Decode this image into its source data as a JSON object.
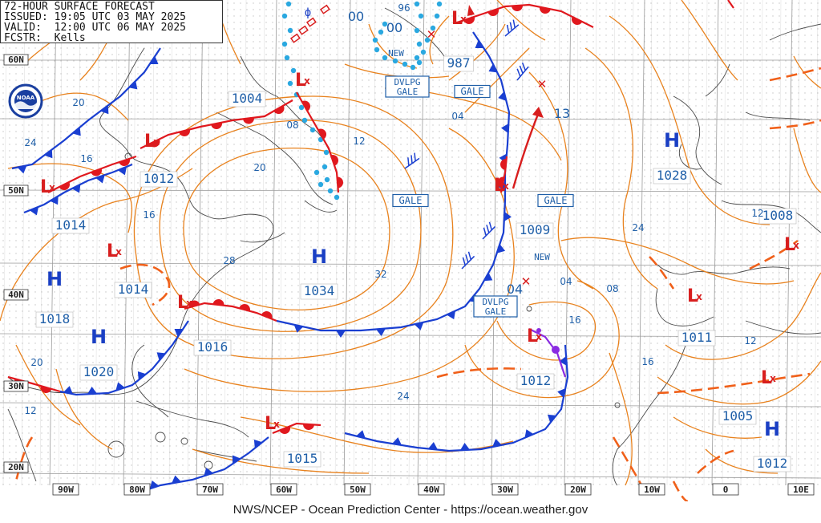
{
  "header": {
    "title": "72-HOUR SURFACE FORECAST",
    "issued": "ISSUED: 19:05 UTC 03 MAY 2025",
    "valid": "VALID:  12:00 UTC 06 MAY 2025",
    "forecaster": "FCSTR:  Kells"
  },
  "footer": {
    "credit": "NWS/NCEP - Ocean Prediction Center - https://ocean.weather.gov"
  },
  "logo": {
    "text": "NOAA",
    "icon": "noaa-logo-icon"
  },
  "colors": {
    "isobar": "#e8821e",
    "label": "#1f5fa8",
    "high": "#1a3fc4",
    "low": "#d81e1e",
    "cold_front": "#1a3fd1",
    "warm_front": "#e0181e",
    "occluded_front": "#8a2be2",
    "ice_edge": "#2aa8e0",
    "trough": "#f0601a",
    "land": "#555555",
    "grid": "#aaaaaa"
  },
  "grid": {
    "lat_labels": [
      "60N",
      "50N",
      "40N",
      "30N",
      "20N"
    ],
    "lon_labels": [
      "90W",
      "80W",
      "70W",
      "60W",
      "50W",
      "40W",
      "30W",
      "20W",
      "10W",
      "0",
      "10E"
    ]
  },
  "highs": [
    {
      "letter": "H",
      "pressure": "1034"
    },
    {
      "letter": "H",
      "pressure": "1028"
    },
    {
      "letter": "H",
      "pressure": "1018"
    },
    {
      "letter": "H",
      "pressure": "1020"
    },
    {
      "letter": "H",
      "pressure": "1012"
    }
  ],
  "lows": [
    {
      "pressure": "1004"
    },
    {
      "pressure": "1012"
    },
    {
      "pressure": "1014"
    },
    {
      "pressure": "1014"
    },
    {
      "pressure": "1016"
    },
    {
      "pressure": "987"
    },
    {
      "pressure": "1009"
    },
    {
      "pressure": "1012"
    },
    {
      "pressure": "1015"
    },
    {
      "pressure": "1011"
    },
    {
      "pressure": "1005"
    },
    {
      "pressure": "1008"
    }
  ],
  "isobar_labels": [
    "20",
    "24",
    "16",
    "16",
    "12",
    "08",
    "20",
    "12",
    "08",
    "28",
    "32",
    "24",
    "04",
    "04",
    "12",
    "16",
    "16",
    "24",
    "20",
    "12",
    "00",
    "96",
    "00",
    "13",
    "04"
  ],
  "stamps": [
    "DVLPG GALE",
    "GALE",
    "GALE",
    "GALE",
    "DVLPG GALE"
  ],
  "tags": [
    "NEW",
    "NEW"
  ],
  "misc": {
    "phi": "ϕ"
  }
}
